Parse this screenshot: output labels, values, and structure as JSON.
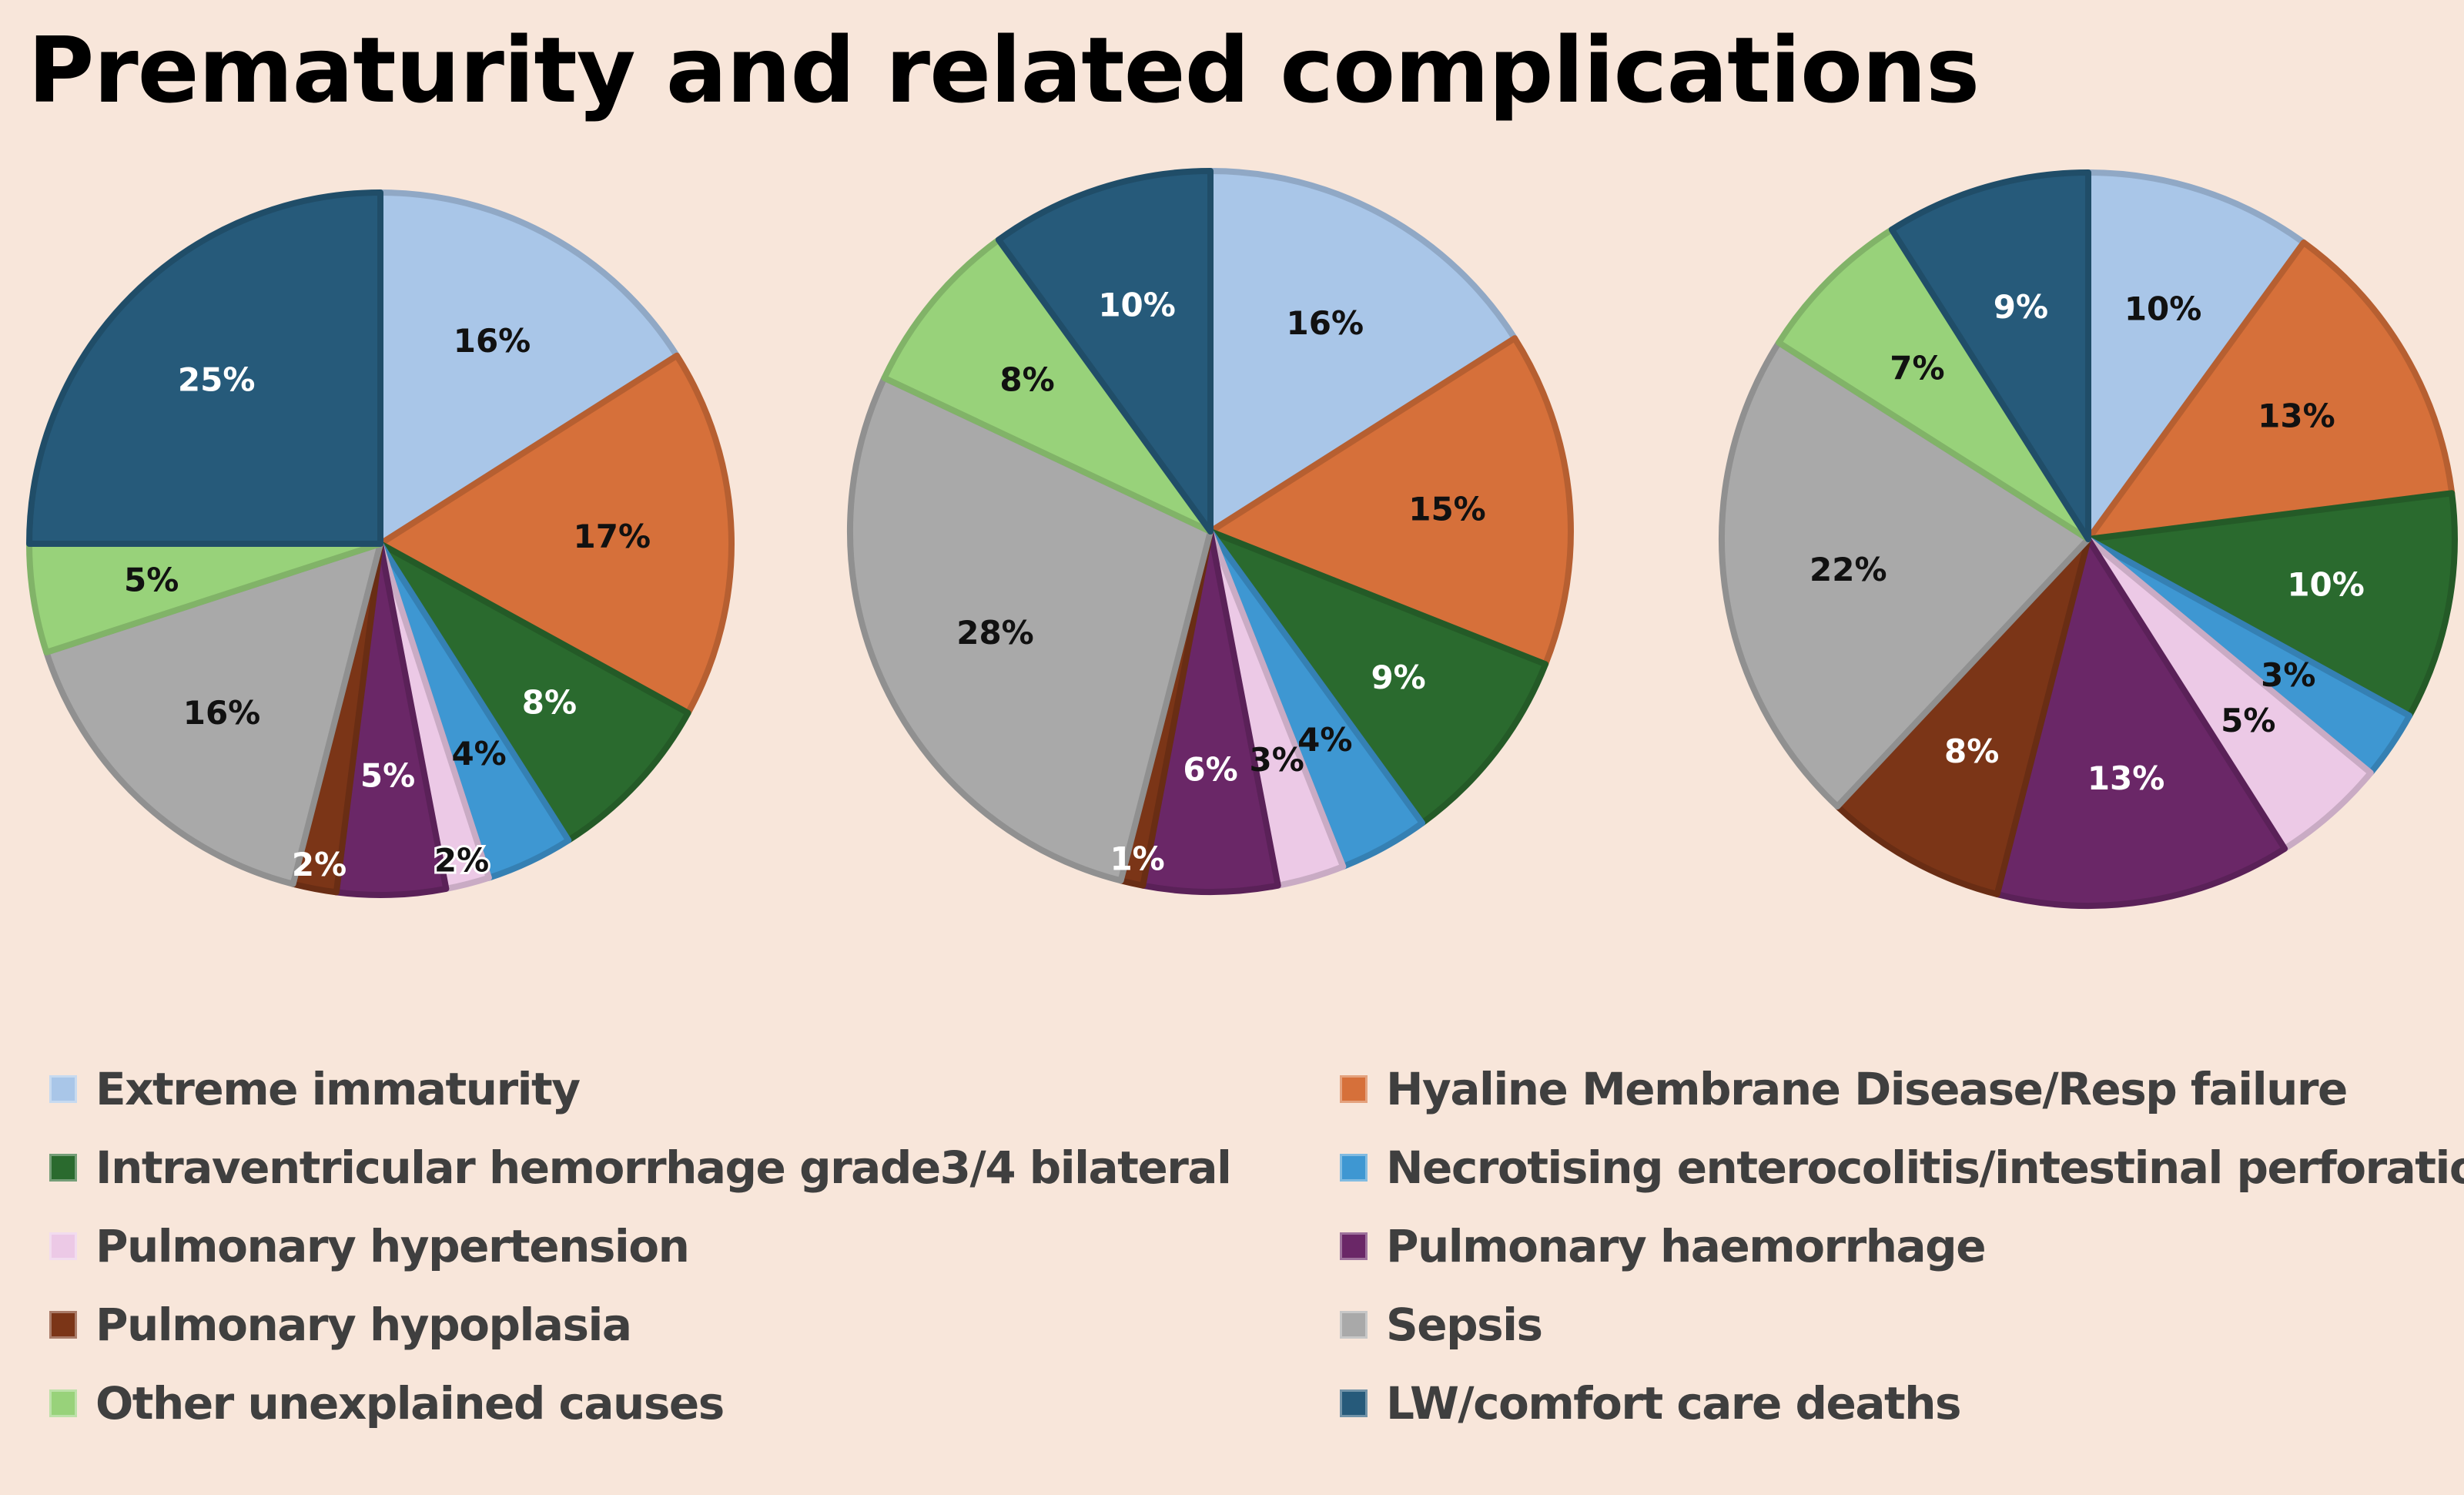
{
  "title": "Prematurity and related complications",
  "chart_data": [
    {
      "type": "pie",
      "slices": [
        {
          "category": "Extreme immaturity",
          "value": 16,
          "label": "16%"
        },
        {
          "category": "Hyaline Membrane Disease/Resp failure",
          "value": 17,
          "label": "17%"
        },
        {
          "category": "Intraventricular hemorrhage grade3/4 bilateral",
          "value": 8,
          "label": "8%"
        },
        {
          "category": "Necrotising enterocolitis/intestinal perforation",
          "value": 4,
          "label": "4%"
        },
        {
          "category": "Pulmonary hypertension",
          "value": 2,
          "label": "2%"
        },
        {
          "category": "Pulmonary haemorrhage",
          "value": 5,
          "label": "5%"
        },
        {
          "category": "Pulmonary hypoplasia",
          "value": 2,
          "label": "2%"
        },
        {
          "category": "Sepsis",
          "value": 16,
          "label": "16%"
        },
        {
          "category": "Other unexplained causes",
          "value": 5,
          "label": "5%"
        },
        {
          "category": "LW/comfort care deaths",
          "value": 25,
          "label": "25%"
        }
      ]
    },
    {
      "type": "pie",
      "slices": [
        {
          "category": "Extreme immaturity",
          "value": 16,
          "label": "16%"
        },
        {
          "category": "Hyaline Membrane Disease/Resp failure",
          "value": 15,
          "label": "15%"
        },
        {
          "category": "Intraventricular hemorrhage grade3/4 bilateral",
          "value": 9,
          "label": "9%"
        },
        {
          "category": "Necrotising enterocolitis/intestinal perforation",
          "value": 4,
          "label": "4%"
        },
        {
          "category": "Pulmonary hypertension",
          "value": 3,
          "label": "3%"
        },
        {
          "category": "Pulmonary haemorrhage",
          "value": 6,
          "label": "6%"
        },
        {
          "category": "Pulmonary hypoplasia",
          "value": 1,
          "label": "1%"
        },
        {
          "category": "Sepsis",
          "value": 28,
          "label": "28%"
        },
        {
          "category": "Other unexplained causes",
          "value": 8,
          "label": "8%"
        },
        {
          "category": "LW/comfort care deaths",
          "value": 10,
          "label": "10%"
        }
      ]
    },
    {
      "type": "pie",
      "slices": [
        {
          "category": "Extreme immaturity",
          "value": 10,
          "label": "10%"
        },
        {
          "category": "Hyaline Membrane Disease/Resp failure",
          "value": 13,
          "label": "13%"
        },
        {
          "category": "Intraventricular hemorrhage grade3/4 bilateral",
          "value": 10,
          "label": "10%"
        },
        {
          "category": "Necrotising enterocolitis/intestinal perforation",
          "value": 3,
          "label": "3%"
        },
        {
          "category": "Pulmonary hypertension",
          "value": 5,
          "label": "5%"
        },
        {
          "category": "Pulmonary haemorrhage",
          "value": 13,
          "label": "13%"
        },
        {
          "category": "Pulmonary hypoplasia",
          "value": 8,
          "label": "8%"
        },
        {
          "category": "Sepsis",
          "value": 22,
          "label": "22%"
        },
        {
          "category": "Other unexplained causes",
          "value": 7,
          "label": "7%"
        },
        {
          "category": "LW/comfort care deaths",
          "value": 9,
          "label": "9%"
        }
      ]
    }
  ],
  "legend": {
    "placement": "bottom",
    "items": [
      {
        "label": "Extreme immaturity",
        "color": "#a9c6e8"
      },
      {
        "label": "Hyaline Membrane Disease/Resp failure",
        "color": "#d6703a"
      },
      {
        "label": "Intraventricular hemorrhage grade3/4 bilateral",
        "color": "#2a6a2e"
      },
      {
        "label": "Necrotising enterocolitis/intestinal perforation",
        "color": "#3e97d2"
      },
      {
        "label": "Pulmonary  hypertension",
        "color": "#ecc9e6"
      },
      {
        "label": "Pulmonary haemorrhage",
        "color": "#6a2767"
      },
      {
        "label": "Pulmonary  hypoplasia",
        "color": "#7b3517"
      },
      {
        "label": "Sepsis",
        "color": "#a9a9a9"
      },
      {
        "label": "Other unexplained causes",
        "color": "#98d27a"
      },
      {
        "label": "LW/comfort care deaths",
        "color": "#265a7a"
      }
    ]
  }
}
